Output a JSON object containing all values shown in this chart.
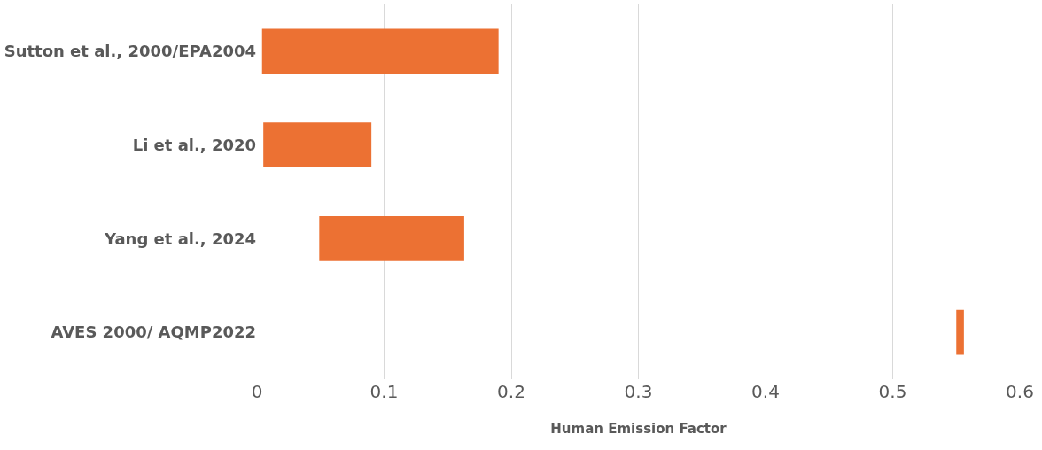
{
  "chart_data": {
    "type": "bar",
    "orientation": "horizontal",
    "xlabel": "Human Emission Factor",
    "categories": [
      "Sutton et al., 2000/EPA2004",
      "Li et al., 2020",
      "Yang et al., 2024",
      "AVES 2000/ AQMP2022"
    ],
    "base": [
      0.004,
      0.005,
      0.049,
      0.55
    ],
    "values": [
      0.186,
      0.085,
      0.114,
      0.006
    ],
    "color": "#ec7133",
    "xlim": [
      0,
      0.6
    ],
    "xticks": [
      0,
      0.1,
      0.2,
      0.3,
      0.4,
      0.5,
      0.6
    ],
    "grid": "x",
    "legend": false
  }
}
